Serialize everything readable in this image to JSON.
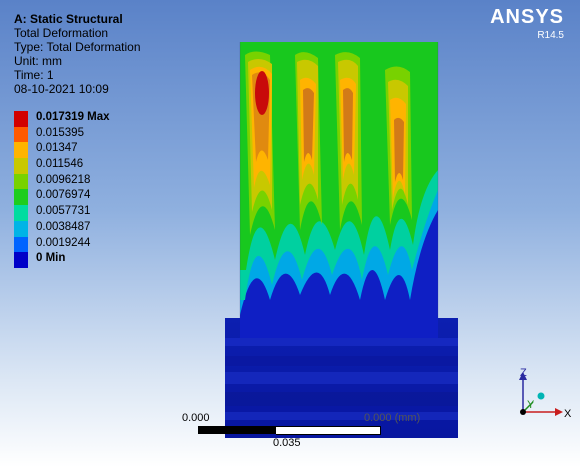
{
  "info": {
    "system": "A: Static Structural",
    "result": "Total Deformation",
    "type": "Type: Total Deformation",
    "unit": "Unit: mm",
    "time": "Time: 1",
    "date": "08-10-2021 10:09"
  },
  "brand": {
    "name": "ANSYS",
    "version": "R14.5"
  },
  "legend": {
    "items": [
      {
        "label": "0.017319 Max",
        "color": "#d20000",
        "strong": true
      },
      {
        "label": "0.015395",
        "color": "#ff5a00",
        "strong": false
      },
      {
        "label": "0.01347",
        "color": "#ffb400",
        "strong": false
      },
      {
        "label": "0.011546",
        "color": "#c8c800",
        "strong": false
      },
      {
        "label": "0.0096218",
        "color": "#78d200",
        "strong": false
      },
      {
        "label": "0.0076974",
        "color": "#1ecd1e",
        "strong": false
      },
      {
        "label": "0.0057731",
        "color": "#00dca0",
        "strong": false
      },
      {
        "label": "0.0038487",
        "color": "#00b4e6",
        "strong": false
      },
      {
        "label": "0.0019244",
        "color": "#0064ff",
        "strong": false
      },
      {
        "label": "0 Min",
        "color": "#0000c8",
        "strong": true
      }
    ]
  },
  "scale": {
    "start": "0.000",
    "end": "0.035",
    "ghost": "0.000 (mm)"
  },
  "triad": {
    "x": "X",
    "y": "Y",
    "z": "Z"
  }
}
